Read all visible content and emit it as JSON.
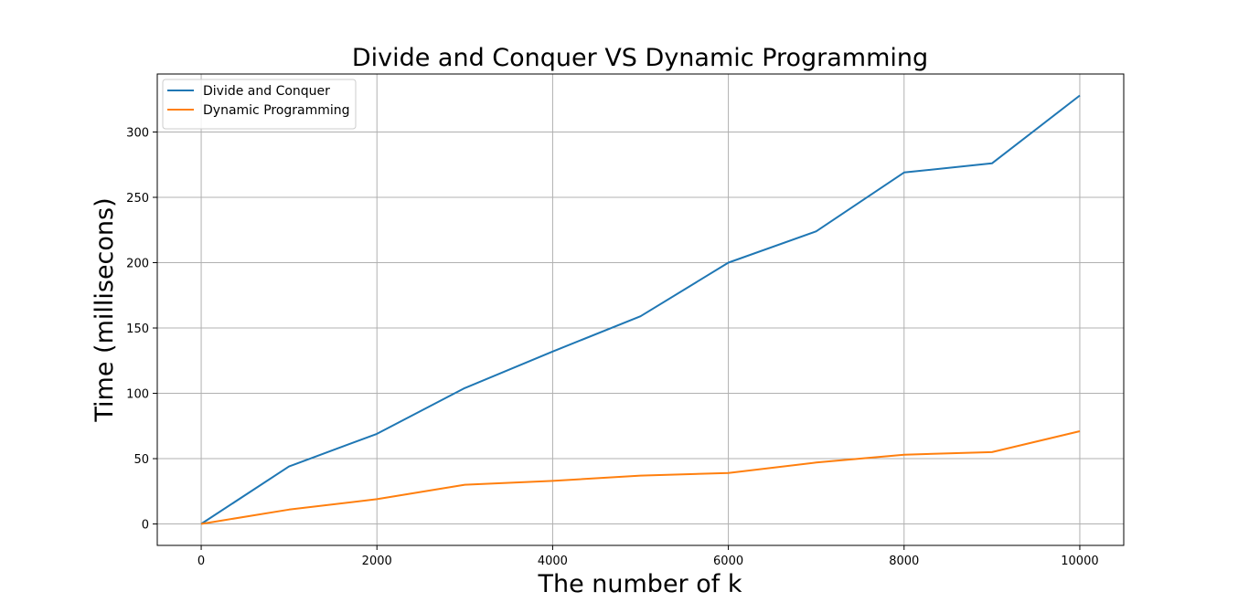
{
  "chart_data": {
    "type": "line",
    "title": "Divide and Conquer VS Dynamic Programming",
    "xlabel": "The number of k",
    "ylabel": "Time (millisecons)",
    "x": [
      0,
      1000,
      2000,
      3000,
      4000,
      5000,
      6000,
      7000,
      8000,
      9000,
      10000
    ],
    "series": [
      {
        "name": "Divide and Conquer",
        "color": "#1f77b4",
        "values": [
          0,
          44,
          69,
          104,
          132,
          159,
          200,
          224,
          269,
          276,
          328
        ]
      },
      {
        "name": "Dynamic Programming",
        "color": "#ff7f0e",
        "values": [
          0,
          11,
          19,
          30,
          33,
          37,
          39,
          47,
          53,
          55,
          71
        ]
      }
    ],
    "xlim": [
      -500,
      10500
    ],
    "ylim": [
      -16.4,
      344.4
    ],
    "xticks": [
      0,
      2000,
      4000,
      6000,
      8000,
      10000
    ],
    "yticks": [
      0,
      50,
      100,
      150,
      200,
      250,
      300
    ],
    "grid": true,
    "legend": "upper-left"
  }
}
